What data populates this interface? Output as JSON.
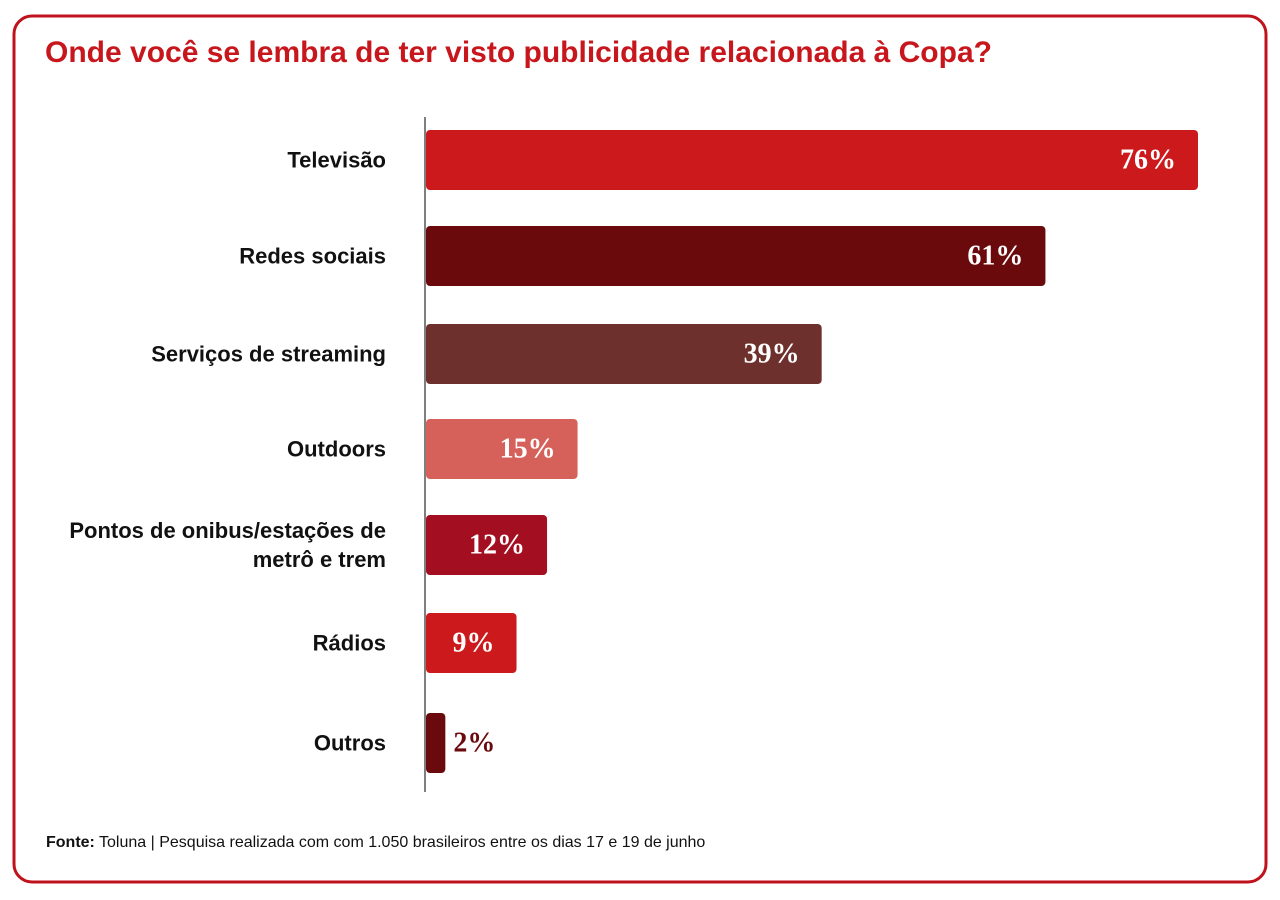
{
  "header": {
    "title": "Onde você se lembra de ter visto publicidade relacionada à Copa?"
  },
  "chart_data": {
    "type": "bar",
    "orientation": "horizontal",
    "categories": [
      "Televisão",
      "Redes sociais",
      "Serviços de streaming",
      "Outdoors",
      "Pontos de onibus/estações de metrô e trem",
      "Rádios",
      "Outros"
    ],
    "values": [
      76,
      61,
      39,
      15,
      12,
      9,
      2
    ],
    "value_labels": [
      "76%",
      "61%",
      "39%",
      "15%",
      "12%",
      "9%",
      "2%"
    ],
    "colors": [
      "#cc1a1c",
      "#6b0a0d",
      "#6e302d",
      "#d6605a",
      "#a30f20",
      "#cc1a1c",
      "#6b0a0d"
    ]
  },
  "footer": {
    "source_label": "Fonte:",
    "text": "Toluna | Pesquisa realizada com com 1.050 brasileiros entre os dias 17 e 19 de junho"
  }
}
